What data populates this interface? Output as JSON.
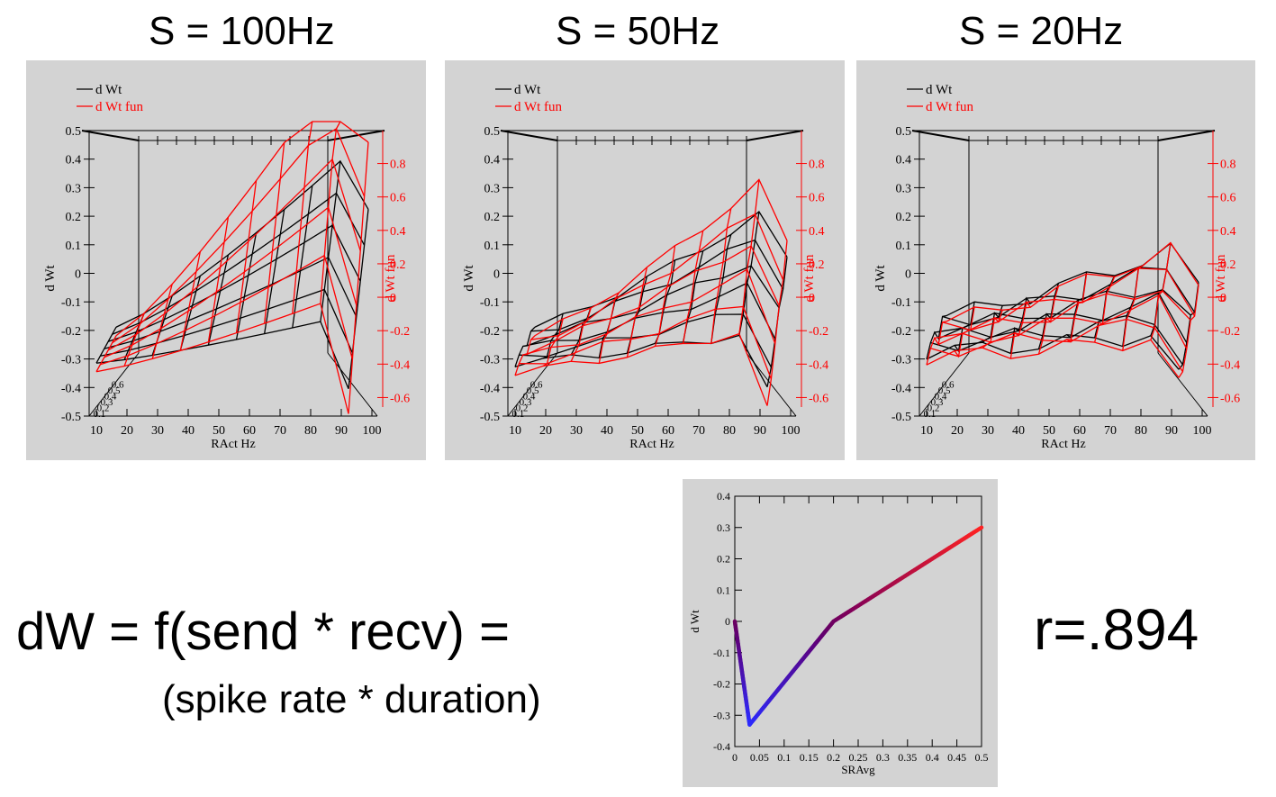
{
  "equation": {
    "line1": "dW = f(send * recv) =",
    "line2": "(spike rate * duration)"
  },
  "correlation": "r=.894",
  "colors": {
    "panel_bg": "#d3d3d3",
    "dwt": "#000000",
    "dwt_fun": "#ff0000"
  },
  "chart_data": [
    {
      "type": "surface3d",
      "title": "S = 100Hz",
      "legend": [
        "d Wt",
        "d Wt fun"
      ],
      "xlabel": "RAct Hz",
      "ylabel": "d Wt",
      "y2label": "d Wt fun",
      "x_ticks": [
        "10",
        "20",
        "30",
        "40",
        "50",
        "60",
        "70",
        "80",
        "90",
        "100"
      ],
      "y_ticks": [
        "0.5",
        "0.4",
        "0.3",
        "0.2",
        "0.1",
        "0",
        "-0.1",
        "-0.2",
        "-0.3",
        "-0.4",
        "-0.5"
      ],
      "y2_ticks": [
        "0.8",
        "0.6",
        "0.4",
        "0.2",
        "0",
        "-0.2",
        "-0.4",
        "-0.6"
      ],
      "depth_ticks": [
        "0.1",
        "0.2",
        "0.3",
        "0.4",
        "0.5",
        "0.6"
      ],
      "ylim": [
        -0.5,
        0.5
      ],
      "y2lim": [
        -0.7,
        0.9
      ],
      "series": [
        {
          "name": "d Wt",
          "peak": 0.45,
          "base": -0.22,
          "spread": 1.0
        },
        {
          "name": "d Wt fun",
          "peak": 0.85,
          "base": -0.25,
          "spread": 1.0
        }
      ]
    },
    {
      "type": "surface3d",
      "title": "S = 50Hz",
      "legend": [
        "d Wt",
        "d Wt fun"
      ],
      "xlabel": "RAct Hz",
      "ylabel": "d Wt",
      "y2label": "d Wt fun",
      "x_ticks": [
        "10",
        "20",
        "30",
        "40",
        "50",
        "60",
        "70",
        "80",
        "90",
        "100"
      ],
      "y_ticks": [
        "0.5",
        "0.4",
        "0.3",
        "0.2",
        "0.1",
        "0",
        "-0.1",
        "-0.2",
        "-0.3",
        "-0.4",
        "-0.5"
      ],
      "y2_ticks": [
        "0.8",
        "0.6",
        "0.4",
        "0.2",
        "0",
        "-0.2",
        "-0.4",
        "-0.6"
      ],
      "depth_ticks": [
        "0.1",
        "0.2",
        "0.3",
        "0.4",
        "0.5",
        "0.6"
      ],
      "ylim": [
        -0.5,
        0.5
      ],
      "y2lim": [
        -0.7,
        0.9
      ],
      "series": [
        {
          "name": "d Wt",
          "peak": 0.33,
          "base": -0.22,
          "spread": 0.7
        },
        {
          "name": "d Wt fun",
          "peak": 0.5,
          "base": -0.25,
          "spread": 0.7
        }
      ]
    },
    {
      "type": "surface3d",
      "title": "S = 20Hz",
      "legend": [
        "d Wt",
        "d Wt fun"
      ],
      "xlabel": "RAct Hz",
      "ylabel": "d Wt",
      "y2label": "d Wt fun",
      "x_ticks": [
        "10",
        "20",
        "30",
        "40",
        "50",
        "60",
        "70",
        "80",
        "90",
        "100"
      ],
      "y_ticks": [
        "0.5",
        "0.4",
        "0.3",
        "0.2",
        "0.1",
        "0",
        "-0.1",
        "-0.2",
        "-0.3",
        "-0.4",
        "-0.5"
      ],
      "y2_ticks": [
        "0.8",
        "0.6",
        "0.4",
        "0.2",
        "0",
        "-0.2",
        "-0.4",
        "-0.6"
      ],
      "depth_ticks": [
        "0.1",
        "0.2",
        "0.3",
        "0.4",
        "0.5",
        "0.6"
      ],
      "ylim": [
        -0.5,
        0.5
      ],
      "y2lim": [
        -0.7,
        0.9
      ],
      "series": [
        {
          "name": "d Wt",
          "peak": 0.23,
          "base": -0.18,
          "spread": 0.4
        },
        {
          "name": "d Wt fun",
          "peak": 0.25,
          "base": -0.2,
          "spread": 0.4
        }
      ]
    },
    {
      "type": "line",
      "xlabel": "SRAvg",
      "ylabel": "d Wt",
      "x_ticks": [
        "0",
        "0.05",
        "0.1",
        "0.15",
        "0.2",
        "0.25",
        "0.3",
        "0.35",
        "0.4",
        "0.45",
        "0.5"
      ],
      "y_ticks": [
        "0.4",
        "0.3",
        "0.2",
        "0.1",
        "0",
        "-0.1",
        "-0.2",
        "-0.3",
        "-0.4"
      ],
      "xlim": [
        0,
        0.5
      ],
      "ylim": [
        -0.4,
        0.4
      ],
      "x": [
        0,
        0.03,
        0.2,
        0.5
      ],
      "y": [
        0,
        -0.33,
        0,
        0.3
      ],
      "color_gradient": [
        "#2a2aff",
        "#ff2222"
      ]
    }
  ]
}
